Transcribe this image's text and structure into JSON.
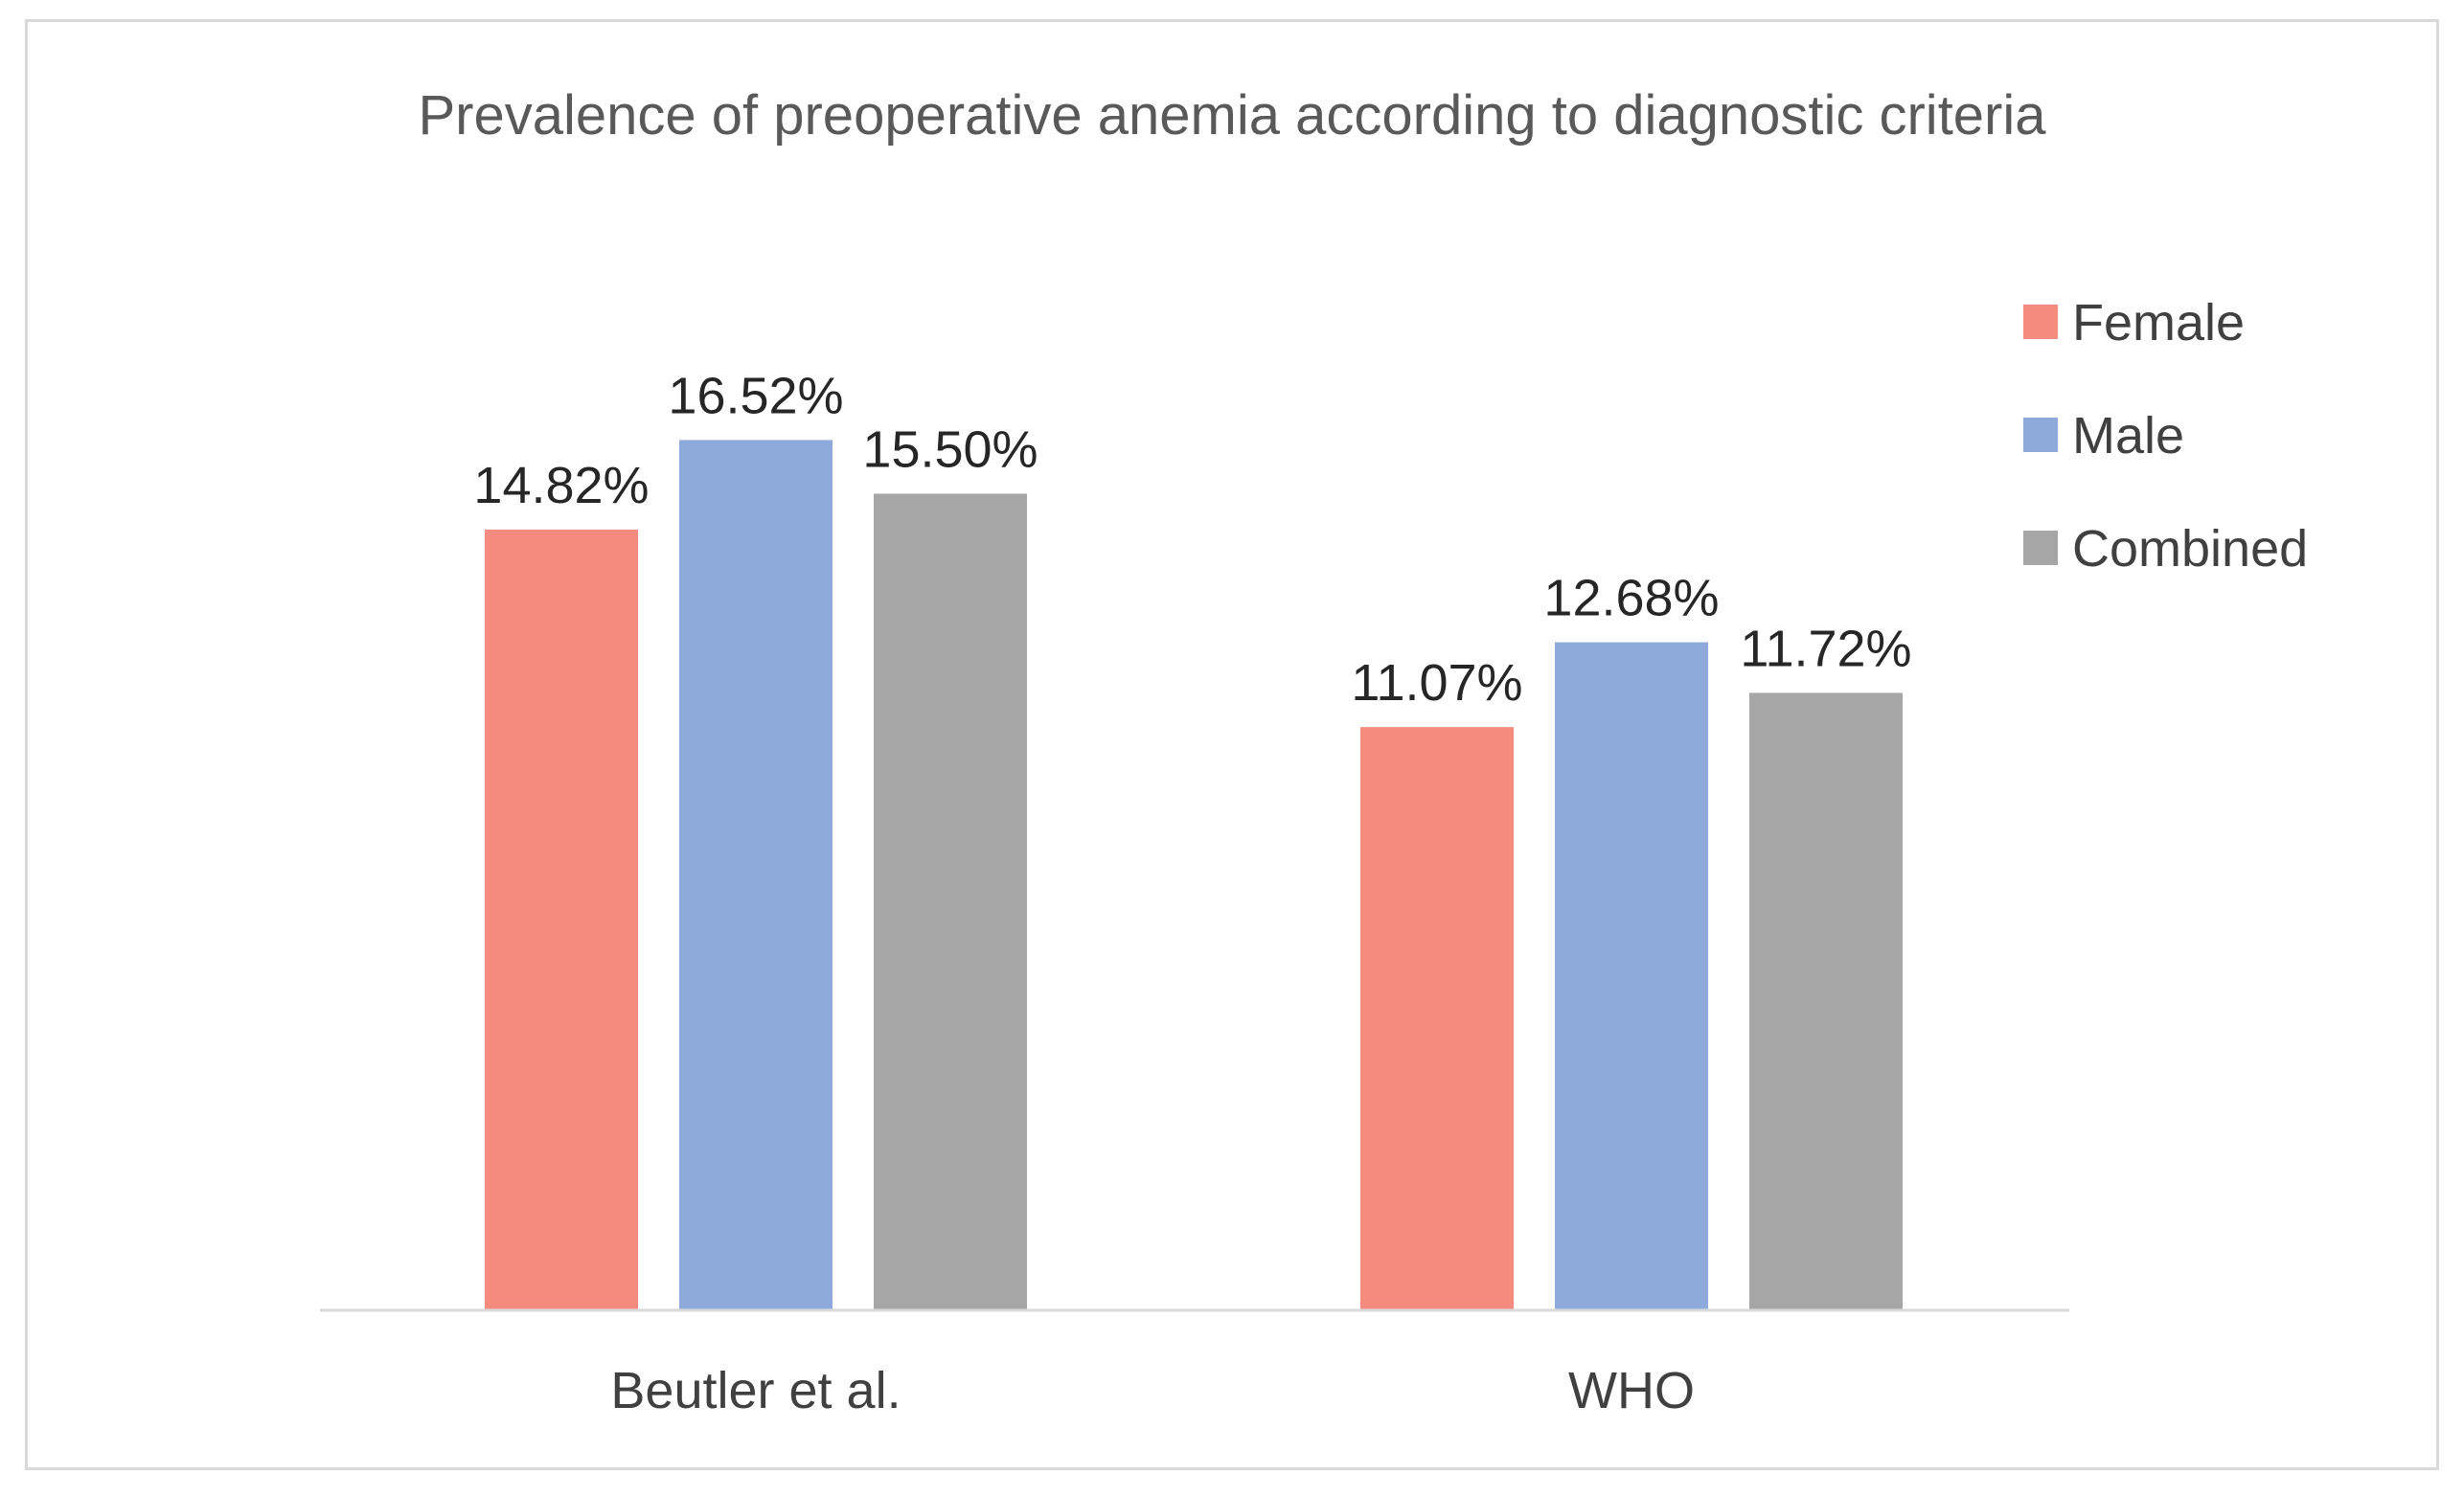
{
  "chart_data": {
    "type": "bar",
    "title": "Prevalence of preoperative anemia according to diagnostic criteria",
    "categories": [
      "Beutler et al.",
      "WHO"
    ],
    "series": [
      {
        "name": "Female",
        "color": "#f48b7e",
        "values": [
          14.82,
          11.07
        ],
        "labels": [
          "14.82%",
          "11.07%"
        ]
      },
      {
        "name": "Male",
        "color": "#8eaadb",
        "values": [
          16.52,
          12.68
        ],
        "labels": [
          "16.52%",
          "12.68%"
        ]
      },
      {
        "name": "Combined",
        "color": "#a6a6a6",
        "values": [
          15.5,
          11.72
        ],
        "labels": [
          "15.50%",
          "11.72%"
        ]
      }
    ],
    "xlabel": "",
    "ylabel": "",
    "ylim": [
      0,
      20
    ],
    "grid": false,
    "legend_position": "right",
    "axis_color": "#d9d9d9"
  }
}
